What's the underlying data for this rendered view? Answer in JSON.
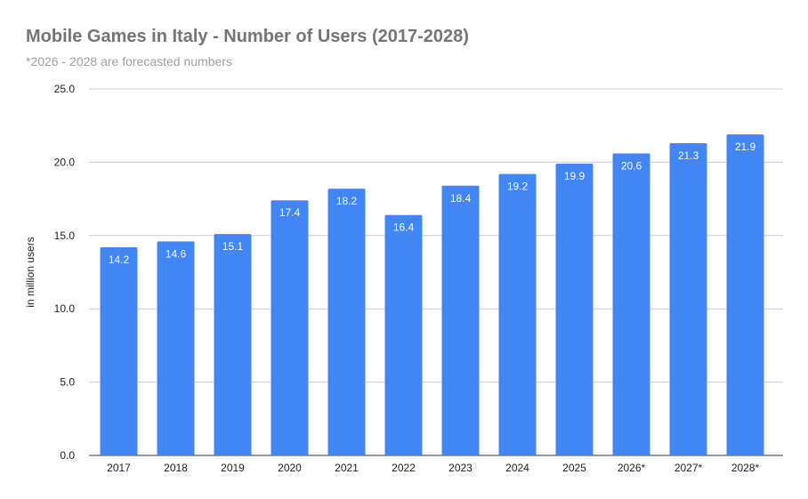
{
  "chart_data": {
    "type": "bar",
    "title": "Mobile Games in Italy - Number of Users (2017-2028)",
    "subtitle": "*2026 - 2028 are forecasted numbers",
    "xlabel": "",
    "ylabel": "in million users",
    "ylim": [
      0,
      25
    ],
    "yticks": [
      "0.0",
      "5.0",
      "10.0",
      "15.0",
      "20.0",
      "25.0"
    ],
    "grid": true,
    "categories": [
      "2017",
      "2018",
      "2019",
      "2020",
      "2021",
      "2022",
      "2023",
      "2024",
      "2025",
      "2026*",
      "2027*",
      "2028*"
    ],
    "values": [
      14.2,
      14.6,
      15.1,
      17.4,
      18.2,
      16.4,
      18.4,
      19.2,
      19.9,
      20.6,
      21.3,
      21.9
    ],
    "data_labels": [
      "14.2",
      "14.6",
      "15.1",
      "17.4",
      "18.2",
      "16.4",
      "18.4",
      "19.2",
      "19.9",
      "20.6",
      "21.3",
      "21.9"
    ],
    "colors": {
      "bar": "#4285f4",
      "grid": "#cccccc",
      "label": "#ffffff"
    }
  }
}
